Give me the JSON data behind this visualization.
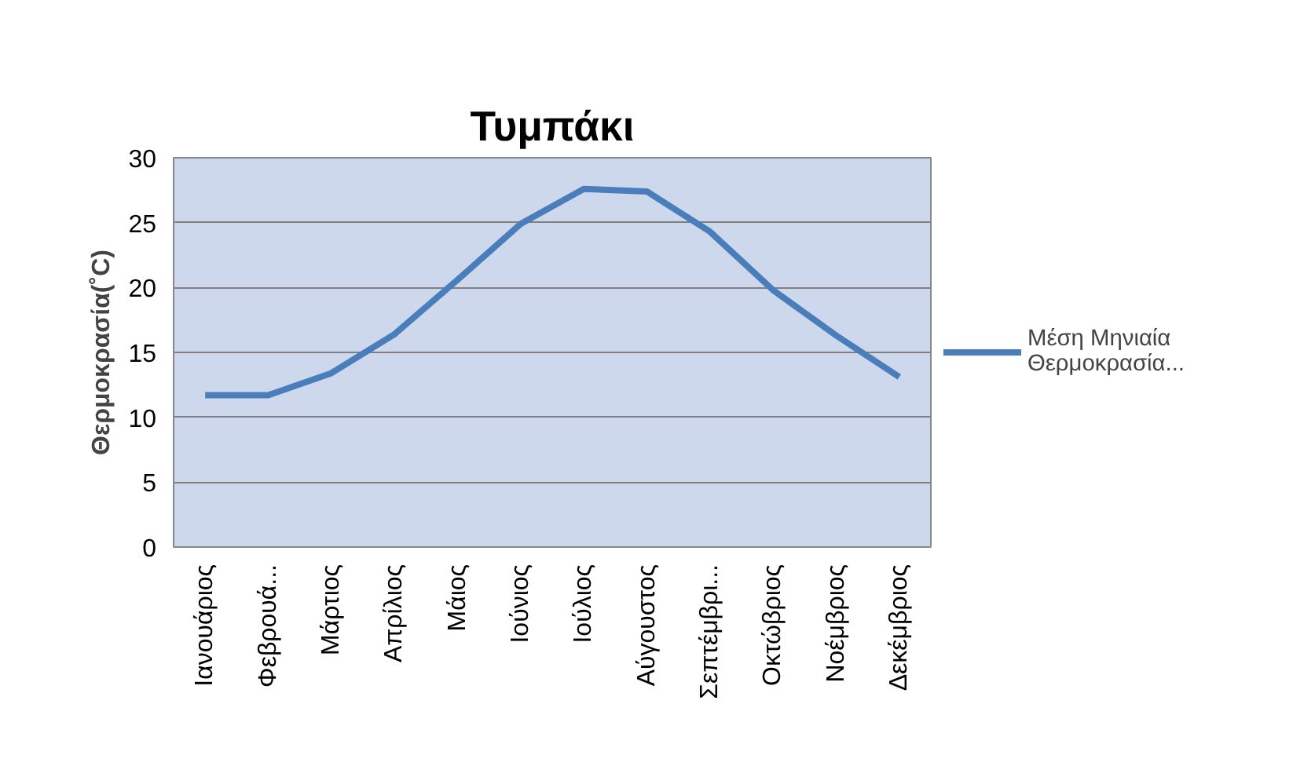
{
  "chart_data": {
    "type": "line",
    "title": "Τυμπάκι",
    "ylabel": "Θερμοκρασία(˚C)",
    "categories": [
      "Ιανουάριος",
      "Φεβρουά...",
      "Μάρτιος",
      "Απρίλιος",
      "Μάιος",
      "Ιούνιος",
      "Ιούλιος",
      "Αύγουστος",
      "Σεπτέμβρι...",
      "Οκτώβριος",
      "Νοέμβριος",
      "Δεκέμβριος"
    ],
    "series": [
      {
        "name": "Μέση Μηνιαία Θερμοκρασία...",
        "color": "#4a7ebb",
        "values": [
          11.7,
          11.7,
          13.4,
          16.4,
          20.6,
          24.9,
          27.6,
          27.4,
          24.3,
          19.8,
          16.3,
          13.1
        ]
      }
    ],
    "ylim": [
      0,
      30
    ],
    "yticks": [
      0,
      5,
      10,
      15,
      20,
      25,
      30
    ],
    "grid": "y",
    "legend": "right",
    "marker": "none",
    "line_style": "solid"
  }
}
